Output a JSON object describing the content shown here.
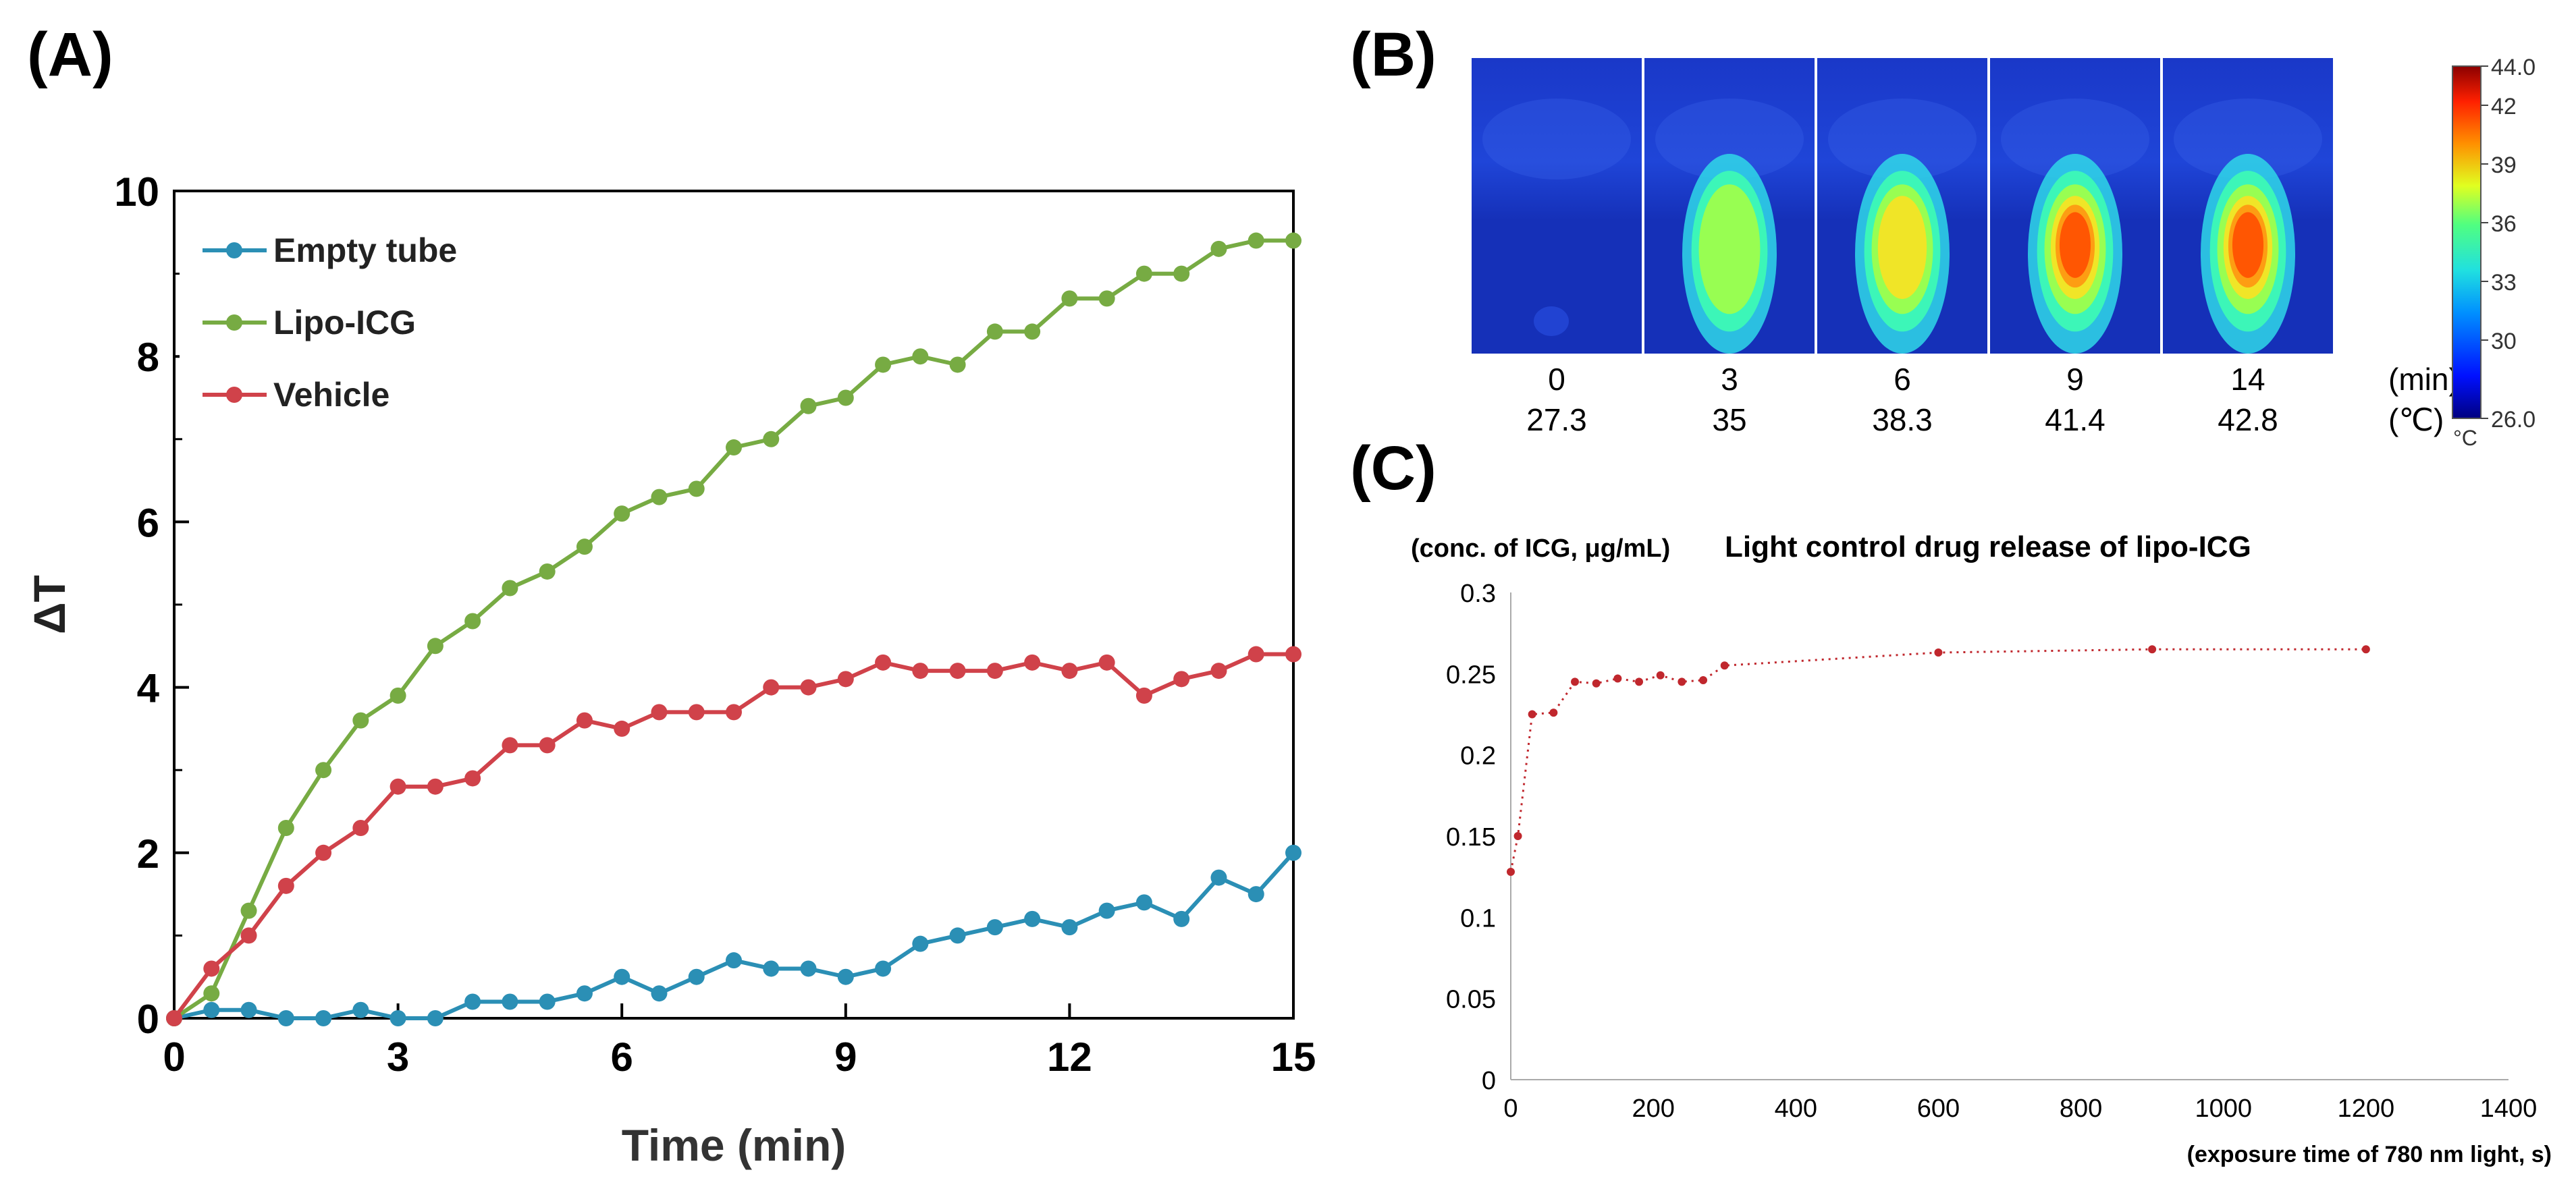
{
  "panels": {
    "a": {
      "label": "(A)"
    },
    "b": {
      "label": "(B)"
    },
    "c": {
      "label": "(C)"
    }
  },
  "chart_data": [
    {
      "type": "line",
      "panel": "A",
      "title": "",
      "xlabel": "Time (min)",
      "ylabel": "ΔT",
      "xlim": [
        0,
        15
      ],
      "ylim": [
        0,
        10
      ],
      "xticks": [
        0,
        3,
        6,
        9,
        12,
        15
      ],
      "yticks": [
        0,
        2,
        4,
        6,
        8,
        10
      ],
      "grid": false,
      "legend_position": "top-left",
      "x": [
        0,
        0.5,
        1,
        1.5,
        2,
        2.5,
        3,
        3.5,
        4,
        4.5,
        5,
        5.5,
        6,
        6.5,
        7,
        7.5,
        8,
        8.5,
        9,
        9.5,
        10,
        10.5,
        11,
        11.5,
        12,
        12.5,
        13,
        13.5,
        14,
        14.5,
        15
      ],
      "series": [
        {
          "name": "Empty tube",
          "color": "#2b8fb5",
          "values": [
            0,
            0.1,
            0.1,
            0,
            0,
            0.1,
            0,
            0,
            0.2,
            0.2,
            0.2,
            0.3,
            0.5,
            0.3,
            0.5,
            0.7,
            0.6,
            0.6,
            0.5,
            0.6,
            0.9,
            1.0,
            1.1,
            1.2,
            1.1,
            1.3,
            1.4,
            1.2,
            1.7,
            1.5,
            2.0
          ]
        },
        {
          "name": "Lipo-ICG",
          "color": "#77ab43",
          "values": [
            0,
            0.3,
            1.3,
            2.3,
            3.0,
            3.6,
            3.9,
            4.5,
            4.8,
            5.2,
            5.4,
            5.7,
            6.1,
            6.3,
            6.4,
            6.9,
            7.0,
            7.4,
            7.5,
            7.9,
            8.0,
            7.9,
            8.3,
            8.3,
            8.7,
            8.7,
            9.0,
            9.0,
            9.3,
            9.4,
            9.4
          ]
        },
        {
          "name": "Vehicle",
          "color": "#d0424a",
          "values": [
            0,
            0.6,
            1.0,
            1.6,
            2.0,
            2.3,
            2.8,
            2.8,
            2.9,
            3.3,
            3.3,
            3.6,
            3.5,
            3.7,
            3.7,
            3.7,
            4.0,
            4.0,
            4.1,
            4.3,
            4.2,
            4.2,
            4.2,
            4.3,
            4.2,
            4.3,
            3.9,
            4.1,
            4.2,
            4.4,
            4.4
          ]
        }
      ]
    },
    {
      "type": "heatmap",
      "panel": "B",
      "time_unit": "(min)",
      "temp_unit": "(℃)",
      "frames": [
        {
          "time": "0",
          "temp": "27.3",
          "intensity": 0.0
        },
        {
          "time": "3",
          "temp": "35",
          "intensity": 0.49
        },
        {
          "time": "6",
          "temp": "38.3",
          "intensity": 0.68
        },
        {
          "time": "9",
          "temp": "41.4",
          "intensity": 0.86
        },
        {
          "time": "14",
          "temp": "42.8",
          "intensity": 0.93
        }
      ],
      "colorbar": {
        "min": 26.0,
        "max": 44.0,
        "tick_labels": [
          "44.0",
          "42",
          "39",
          "36",
          "33",
          "30",
          "26.0"
        ],
        "tick_values": [
          44,
          42,
          39,
          36,
          33,
          30,
          26
        ],
        "unit": "°C"
      }
    },
    {
      "type": "scatter",
      "panel": "C",
      "title": "Light control drug release of lipo-ICG",
      "ylabel": "(conc. of ICG, μg/mL)",
      "xlabel": "(exposure time of 780 nm light, s)",
      "xlim": [
        0,
        1400
      ],
      "ylim": [
        0,
        0.3
      ],
      "xticks": [
        0,
        200,
        400,
        600,
        800,
        1000,
        1200,
        1400
      ],
      "yticks": [
        0,
        0.05,
        0.1,
        0.15,
        0.2,
        0.25,
        0.3
      ],
      "ytick_labels": [
        "0",
        "0.05",
        "0.1",
        "0.15",
        "0.2",
        "0.25",
        "0.3"
      ],
      "grid": false,
      "series": [
        {
          "color": "#c0272d",
          "x": [
            0,
            10,
            30,
            60,
            90,
            120,
            150,
            180,
            210,
            240,
            270,
            300,
            600,
            900,
            1200
          ],
          "values": [
            0.128,
            0.15,
            0.225,
            0.226,
            0.245,
            0.244,
            0.247,
            0.245,
            0.249,
            0.245,
            0.246,
            0.255,
            0.263,
            0.265,
            0.265
          ]
        }
      ]
    }
  ]
}
